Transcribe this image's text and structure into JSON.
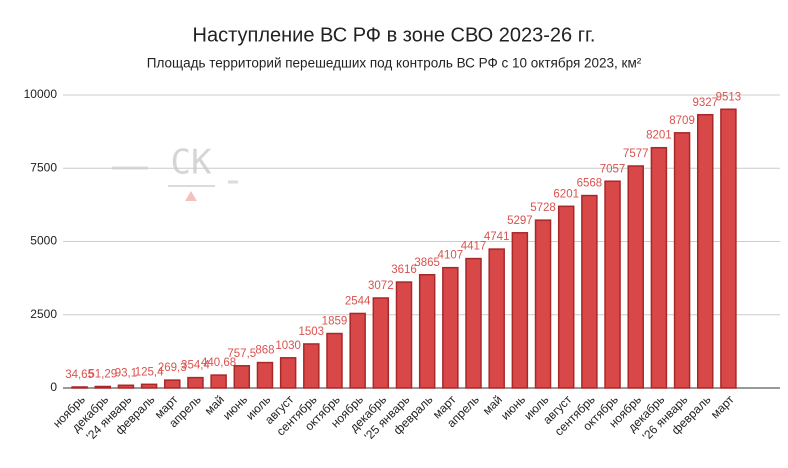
{
  "chart_data": {
    "type": "bar",
    "title": "Наступление ВС РФ в зоне СВО 2023-26 гг.",
    "subtitle": "Площадь территорий перешедших под контроль ВС РФ с 10 октября 2023, км²",
    "watermark": "СК",
    "categories": [
      "ноябрь",
      "декабрь",
      "'24 январь",
      "февраль",
      "март",
      "апрель",
      "май",
      "июнь",
      "июль",
      "август",
      "сентябрь",
      "октябрь",
      "ноябрь",
      "декабрь",
      "'25 январь",
      "февраль",
      "март",
      "апрель",
      "май",
      "июнь",
      "июль",
      "август",
      "сентябрь",
      "октябрь",
      "ноябрь",
      "декабрь",
      "'26 январь",
      "февраль",
      "март"
    ],
    "values": [
      34.65,
      51.29,
      93.1,
      125.4,
      269.3,
      354.4,
      440.68,
      757.5,
      868,
      1030,
      1503,
      1859,
      2544,
      3072,
      3616,
      3865,
      4107,
      4417,
      4741,
      5297,
      5728,
      6201,
      6568,
      7057,
      7577,
      8201,
      8709,
      9327,
      9513
    ],
    "value_labels": [
      "34,65",
      "51,29",
      "93,1",
      "125,4",
      "269,3",
      "354,4",
      "440,68",
      "757,5",
      "868",
      "1030",
      "1503",
      "1859",
      "2544",
      "3072",
      "3616",
      "3865",
      "4107",
      "4417",
      "4741",
      "5297",
      "5728",
      "6201",
      "6568",
      "7057",
      "7577",
      "8201",
      "8709",
      "9327",
      "9513"
    ],
    "color": "#d94848",
    "ylim": [
      0,
      10000
    ],
    "yticks": [
      0,
      2500,
      5000,
      7500,
      10000
    ],
    "grid": true
  }
}
